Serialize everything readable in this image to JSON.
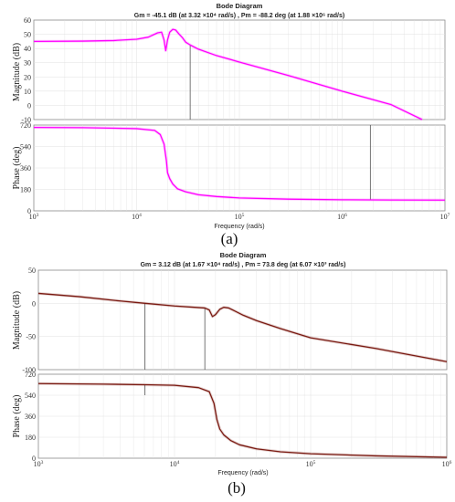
{
  "chart_data": [
    {
      "type": "line",
      "subplot": "(a)",
      "title": "Bode Diagram",
      "subtitle": "Gm = -45.1 dB (at 3.32 ×10⁴ rad/s) ,  Pm = -88.2 deg (at 1.88 ×10⁶ rad/s)",
      "caption": "(a)",
      "xlabel": "Frequency  (rad/s)",
      "xscale": "log",
      "xlim": [
        1000,
        10000000
      ],
      "xticks": [
        {
          "v": 1000,
          "base": "10",
          "exp": "3"
        },
        {
          "v": 10000,
          "base": "10",
          "exp": "4"
        },
        {
          "v": 100000,
          "base": "10",
          "exp": "5"
        },
        {
          "v": 1000000,
          "base": "10",
          "exp": "6"
        },
        {
          "v": 10000000,
          "base": "10",
          "exp": "7"
        }
      ],
      "color": "#ff00ff",
      "grid": true,
      "magnitude": {
        "ylabel": "Magnitude (dB)",
        "ylim": [
          -10,
          60
        ],
        "yticks": [
          -10,
          0,
          10,
          20,
          30,
          40,
          50,
          60
        ],
        "x": [
          1000,
          3000,
          6000,
          10000,
          13000,
          16000,
          17500,
          18500,
          19200,
          20000,
          21000,
          22500,
          24000,
          26000,
          28000,
          30000,
          33200,
          40000,
          60000,
          100000,
          300000,
          1000000,
          3000000,
          6000000
        ],
        "y": [
          45,
          45.2,
          45.6,
          46.5,
          48,
          51,
          51.5,
          46,
          38.5,
          46,
          51.5,
          53.5,
          53,
          50,
          47.5,
          44.5,
          42.5,
          39.5,
          35,
          30.5,
          21,
          10,
          0.5,
          -10
        ],
        "markers": [
          {
            "x": 33200,
            "from": 42.5,
            "to": -10
          }
        ]
      },
      "phase": {
        "ylabel": "Phase (deg)",
        "ylim": [
          0,
          720
        ],
        "yticks": [
          0,
          180,
          360,
          540,
          720
        ],
        "x": [
          1000,
          3000,
          10000,
          15000,
          17000,
          18500,
          19500,
          20000,
          21000,
          22500,
          25000,
          30000,
          40000,
          60000,
          100000,
          300000,
          1000000,
          3000000,
          10000000
        ],
        "y": [
          700,
          698,
          690,
          675,
          640,
          560,
          420,
          320,
          270,
          225,
          185,
          160,
          135,
          120,
          108,
          98,
          93,
          91,
          90
        ],
        "markers": [
          {
            "x": 1880000,
            "from": 91,
            "to": 720
          }
        ]
      }
    },
    {
      "type": "line",
      "subplot": "(b)",
      "title": "Bode Diagram",
      "subtitle": "Gm = 3.12 dB (at 1.67 ×10⁴ rad/s) ,  Pm = 73.8 deg (at 6.07 ×10³ rad/s)",
      "caption": "(b)",
      "xlabel": "Frequency  (rad/s)",
      "xscale": "log",
      "xlim": [
        1000,
        1000000
      ],
      "xticks": [
        {
          "v": 1000,
          "base": "10",
          "exp": "3"
        },
        {
          "v": 10000,
          "base": "10",
          "exp": "4"
        },
        {
          "v": 100000,
          "base": "10",
          "exp": "5"
        },
        {
          "v": 1000000,
          "base": "10",
          "exp": "6"
        }
      ],
      "color": "#7a1a12",
      "grid": true,
      "magnitude": {
        "ylabel": "Magnitude (dB)",
        "ylim": [
          -100,
          50
        ],
        "yticks": [
          -100,
          -50,
          0,
          50
        ],
        "x": [
          1000,
          2000,
          4000,
          6070,
          10000,
          14000,
          16700,
          18000,
          19000,
          20000,
          21500,
          23000,
          25000,
          28000,
          32000,
          40000,
          60000,
          100000,
          300000,
          1000000
        ],
        "y": [
          15,
          10,
          3.5,
          0,
          -4,
          -6,
          -7,
          -10,
          -20,
          -17,
          -9,
          -6,
          -7,
          -12,
          -18,
          -26,
          -38,
          -52,
          -68,
          -88
        ],
        "markers": [
          {
            "x": 6070,
            "from": 0,
            "to": -100
          },
          {
            "x": 16700,
            "from": -7,
            "to": -100
          }
        ]
      },
      "phase": {
        "ylabel": "Phase (deg)",
        "ylim": [
          0,
          720
        ],
        "yticks": [
          0,
          180,
          360,
          540,
          720
        ],
        "x": [
          1000,
          3000,
          6070,
          10000,
          15000,
          18000,
          19500,
          20500,
          21500,
          23000,
          26000,
          30000,
          40000,
          60000,
          100000,
          300000,
          1000000
        ],
        "y": [
          640,
          635,
          630,
          625,
          605,
          570,
          470,
          330,
          250,
          200,
          150,
          115,
          80,
          55,
          38,
          20,
          8
        ],
        "markers": [
          {
            "x": 6070,
            "from": 630,
            "to": 540
          }
        ]
      }
    }
  ]
}
